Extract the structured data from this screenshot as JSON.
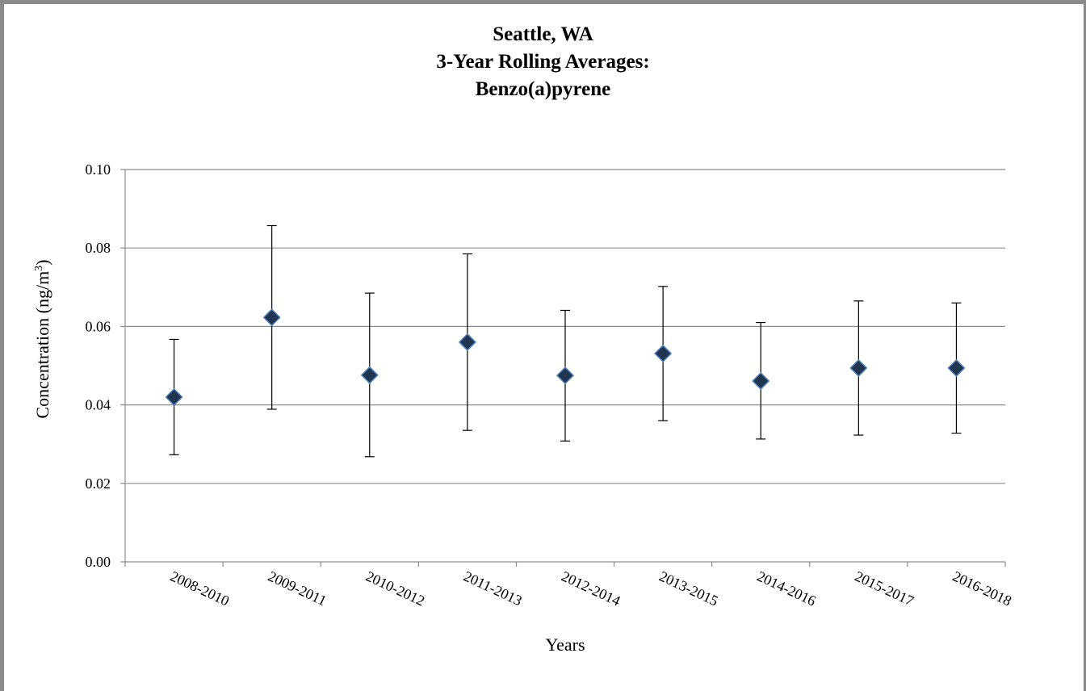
{
  "chart_data": {
    "type": "scatter",
    "title_lines": [
      "Seattle, WA",
      "3-Year Rolling Averages:",
      "Benzo(a)pyrene"
    ],
    "xlabel": "Years",
    "ylabel": "Concentration (ng/m",
    "ylabel_sup": "3",
    "ylabel_end": ")",
    "categories": [
      "2008-2010",
      "2009-2011",
      "2010-2012",
      "2011-2013",
      "2012-2014",
      "2013-2015",
      "2014-2016",
      "2015-2017",
      "2016-2018"
    ],
    "values": [
      0.042,
      0.0623,
      0.0476,
      0.056,
      0.0475,
      0.0531,
      0.0461,
      0.0494,
      0.0494
    ],
    "error_low": [
      0.0273,
      0.0389,
      0.0268,
      0.0335,
      0.0308,
      0.036,
      0.0313,
      0.0323,
      0.0328
    ],
    "error_high": [
      0.0567,
      0.0857,
      0.0685,
      0.0785,
      0.0641,
      0.0702,
      0.061,
      0.0665,
      0.066
    ],
    "ylim": [
      0,
      0.1
    ],
    "yticks": [
      "0.00",
      "0.02",
      "0.04",
      "0.06",
      "0.08",
      "0.10"
    ],
    "grid": true,
    "marker": "diamond",
    "marker_color": "#1f3550",
    "marker_edge_color": "#4f81bd"
  }
}
